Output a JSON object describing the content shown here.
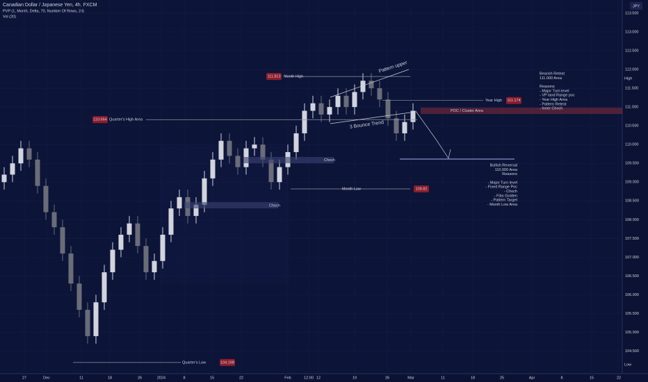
{
  "chart_data": {
    "type": "candlestick",
    "title": "Canadian Dollar / Japanese Yen, 4h, FXCM",
    "indicators": [
      "PVP (1, Month, Delta, 70, Number Of Rows, 24)",
      "Vol (20)"
    ],
    "currency": "JPY",
    "up_color": "#d1d4dc",
    "down_color": "#6a6d78",
    "open": [
      109.0,
      109.2,
      109.5,
      109.9,
      109.6,
      108.9,
      108.2,
      107.8,
      107.1,
      106.3,
      105.6,
      104.9,
      105.8,
      106.6,
      107.2,
      107.6,
      107.9,
      107.3,
      106.6,
      106.9,
      107.6,
      108.3,
      108.6,
      108.1,
      108.4,
      109.1,
      109.6,
      110.1,
      109.7,
      109.4,
      109.9,
      110.0,
      109.6,
      109.0,
      109.4,
      109.8,
      110.3,
      110.9,
      111.1,
      110.8,
      111.0,
      111.3,
      111.0,
      111.4,
      111.7,
      111.5,
      111.2,
      110.7,
      110.3,
      110.6
    ],
    "high": [
      109.4,
      109.7,
      110.1,
      110.1,
      109.8,
      109.1,
      108.4,
      108.0,
      107.3,
      106.5,
      105.8,
      106.0,
      106.8,
      107.4,
      107.8,
      108.1,
      108.1,
      107.5,
      107.1,
      107.8,
      108.5,
      108.8,
      108.8,
      108.6,
      109.3,
      109.8,
      110.3,
      110.3,
      109.9,
      110.1,
      110.2,
      110.2,
      109.8,
      109.6,
      110.0,
      110.5,
      111.1,
      111.3,
      111.3,
      111.2,
      111.5,
      111.5,
      111.6,
      111.9,
      111.9,
      111.7,
      111.4,
      110.9,
      110.8,
      111.1
    ],
    "low": [
      108.8,
      109.0,
      109.3,
      109.4,
      108.7,
      108.0,
      107.6,
      106.9,
      106.1,
      105.4,
      104.7,
      104.7,
      105.6,
      106.4,
      107.0,
      107.4,
      107.1,
      106.4,
      106.4,
      106.7,
      107.4,
      108.1,
      107.9,
      107.9,
      108.2,
      108.9,
      109.4,
      109.5,
      109.2,
      109.2,
      109.7,
      109.4,
      108.8,
      108.8,
      109.2,
      109.6,
      110.1,
      110.7,
      110.6,
      110.6,
      110.8,
      110.8,
      110.8,
      111.2,
      111.3,
      111.0,
      110.5,
      110.1,
      110.1,
      110.4
    ],
    "close": [
      109.2,
      109.5,
      109.9,
      109.6,
      108.9,
      108.2,
      107.8,
      107.1,
      106.3,
      105.6,
      104.9,
      105.8,
      106.6,
      107.2,
      107.6,
      107.9,
      107.3,
      106.6,
      106.9,
      107.6,
      108.3,
      108.6,
      108.1,
      108.4,
      109.1,
      109.6,
      110.1,
      109.7,
      109.4,
      109.9,
      110.0,
      109.6,
      109.0,
      109.4,
      109.8,
      110.3,
      110.9,
      111.1,
      110.8,
      111.0,
      111.3,
      111.0,
      111.4,
      111.7,
      111.5,
      111.2,
      110.7,
      110.3,
      110.6,
      110.9
    ],
    "ylim": [
      103.9,
      113.85
    ],
    "yticks": [
      {
        "value": 104.5,
        "label": "104.500"
      },
      {
        "value": 105,
        "label": "105.000"
      },
      {
        "value": 105.5,
        "label": "105.500"
      },
      {
        "value": 106,
        "label": "106.000"
      },
      {
        "value": 106.5,
        "label": "106.500"
      },
      {
        "value": 107,
        "label": "107.000"
      },
      {
        "value": 107.5,
        "label": "107.500"
      },
      {
        "value": 108,
        "label": "108.000"
      },
      {
        "value": 108.5,
        "label": "108.500"
      },
      {
        "value": 109,
        "label": "109.000"
      },
      {
        "value": 109.5,
        "label": "109.500"
      },
      {
        "value": 110,
        "label": "110.000"
      },
      {
        "value": 110.5,
        "label": "110.500"
      },
      {
        "value": 111,
        "label": "111.000"
      },
      {
        "value": 111.5,
        "label": "111.500"
      },
      {
        "value": 112,
        "label": "112.000"
      },
      {
        "value": 112.5,
        "label": "112.500"
      },
      {
        "value": 113,
        "label": "113.000"
      },
      {
        "value": 113.5,
        "label": "113.500"
      }
    ],
    "x_labels": [
      "27",
      "Dec",
      "11",
      "18",
      "26",
      "2024",
      "8",
      "15",
      "22",
      "Feb",
      "12:00",
      "12",
      "19",
      "26",
      "Mar",
      "11",
      "18",
      "25",
      "Apr",
      "8",
      "15",
      "22"
    ],
    "levels": [
      {
        "name": "Month High",
        "value": 111.813
      },
      {
        "name": "Year High",
        "value": 111.174
      },
      {
        "name": "Quarter's High Area",
        "value": 110.664
      },
      {
        "name": "Month Low",
        "value": 108.82
      },
      {
        "name": "Quarter's Low",
        "value": 104.198
      }
    ],
    "annotations": [
      "Pattern upper",
      "3 Bounce Trend",
      "POC / Cluster Area",
      "Choch",
      "Choch",
      "High",
      "Low"
    ],
    "bearish_note": [
      "Bearish Retest",
      "111.000 Area",
      "Reasons",
      "- Major Turn level",
      "- VP land Range poc",
      "- Year High Area",
      "- Pattern Retest",
      "- Inner Choch"
    ],
    "bullish_note": [
      "Bullish Reversal",
      "110.000 Area",
      "Reasons",
      "- Major Turn level",
      "- Fixed Range Poc",
      "- Choch",
      "- Fibo Golden",
      "- Pattern Target",
      "- Month Low Area"
    ]
  }
}
